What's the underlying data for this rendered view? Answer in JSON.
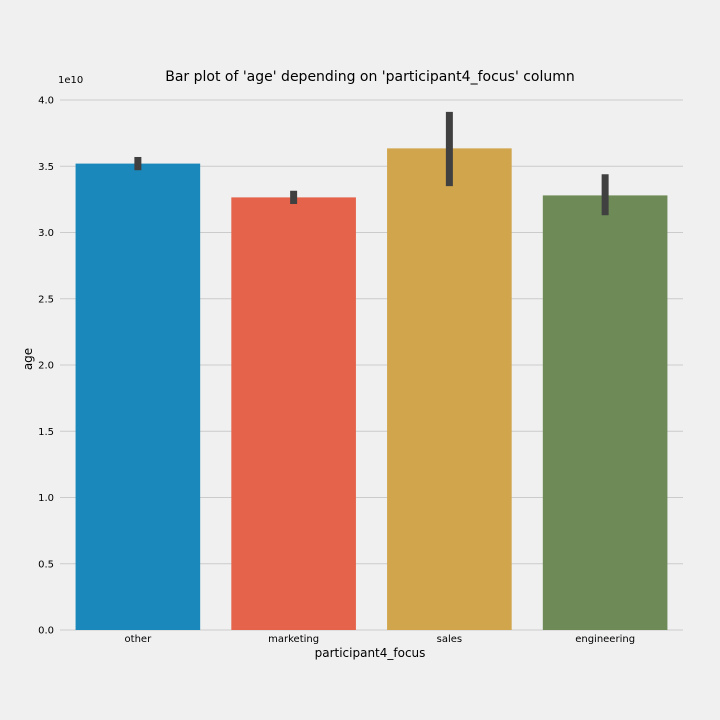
{
  "chart_data": {
    "type": "bar",
    "title": "Bar plot of 'age' depending on 'participant4_focus' column",
    "xlabel": "participant4_focus",
    "ylabel": "age",
    "y_offset_label": "1e10",
    "y_scale": 10000000000,
    "categories": [
      "other",
      "marketing",
      "sales",
      "engineering"
    ],
    "values": [
      3.52,
      3.265,
      3.635,
      3.28
    ],
    "error_low": [
      3.47,
      3.215,
      3.35,
      3.13
    ],
    "error_high": [
      3.57,
      3.315,
      3.91,
      3.44
    ],
    "colors": [
      "#1a88bb",
      "#e5634a",
      "#d0a54c",
      "#6e8b57"
    ],
    "error_color": "#404040",
    "ylim": [
      0,
      4.0
    ],
    "yticks": [
      "0.0",
      "0.5",
      "1.0",
      "1.5",
      "2.0",
      "2.5",
      "3.0",
      "3.5",
      "4.0"
    ],
    "grid": true,
    "background": "#f0f0f0"
  }
}
